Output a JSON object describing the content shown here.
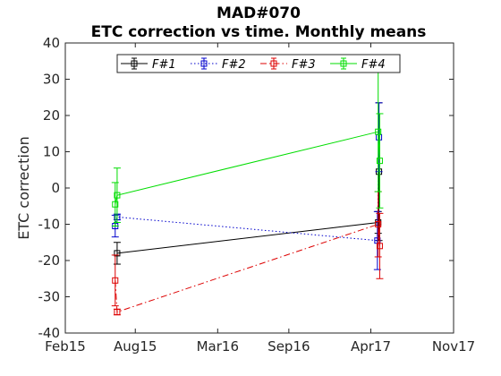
{
  "chart_data": {
    "type": "line",
    "title_lines": [
      "MAD#070",
      "ETC correction vs time. Monthly means"
    ],
    "xlabel": "",
    "ylabel": "ETC correction",
    "xlim": [
      "2015-02-01",
      "2017-11-01"
    ],
    "ylim": [
      -40,
      40
    ],
    "x_ticks": [
      {
        "date": "2015-02-01",
        "label": "Feb15"
      },
      {
        "date": "2015-08-01",
        "label": "Aug15"
      },
      {
        "date": "2016-03-01",
        "label": "Mar16"
      },
      {
        "date": "2016-09-01",
        "label": "Sep16"
      },
      {
        "date": "2017-04-01",
        "label": "Apr17"
      },
      {
        "date": "2017-11-01",
        "label": "Nov17"
      }
    ],
    "y_ticks": [
      -40,
      -30,
      -20,
      -10,
      0,
      10,
      20,
      30,
      40
    ],
    "grid": false,
    "legend_position": "top",
    "series": [
      {
        "name": "F#1",
        "color": "#000000",
        "line_style": "solid",
        "points": [
          {
            "x": "2015-06-15",
            "y": -18.0,
            "err": 3.0
          },
          {
            "x": "2017-04-20",
            "y": -9.5,
            "err": 3.0
          },
          {
            "x": "2017-04-22",
            "y": 4.5,
            "err": 19.0
          }
        ]
      },
      {
        "name": "F#2",
        "color": "#0000cc",
        "line_style": "dotted",
        "points": [
          {
            "x": "2015-06-10",
            "y": -10.5,
            "err": 3.0
          },
          {
            "x": "2015-06-15",
            "y": -8.0,
            "err": 0.8
          },
          {
            "x": "2017-04-18",
            "y": -14.5,
            "err": 8.0
          },
          {
            "x": "2017-04-22",
            "y": 14.0,
            "err": 9.5
          }
        ]
      },
      {
        "name": "F#3",
        "color": "#dd0000",
        "line_style": "dashdot",
        "points": [
          {
            "x": "2015-06-10",
            "y": -25.5,
            "err": 7.0
          },
          {
            "x": "2015-06-15",
            "y": -34.2,
            "err": 0.8
          },
          {
            "x": "2017-04-20",
            "y": -10.0,
            "err": 9.0
          },
          {
            "x": "2017-04-24",
            "y": -16.0,
            "err": 9.0
          }
        ]
      },
      {
        "name": "F#4",
        "color": "#00dd00",
        "line_style": "solid",
        "points": [
          {
            "x": "2015-06-10",
            "y": -4.5,
            "err": 6.0
          },
          {
            "x": "2015-06-15",
            "y": -2.0,
            "err": 7.5
          },
          {
            "x": "2017-04-20",
            "y": 15.5,
            "err": 16.5
          },
          {
            "x": "2017-04-24",
            "y": 7.5,
            "err": 13.0
          }
        ]
      }
    ]
  }
}
